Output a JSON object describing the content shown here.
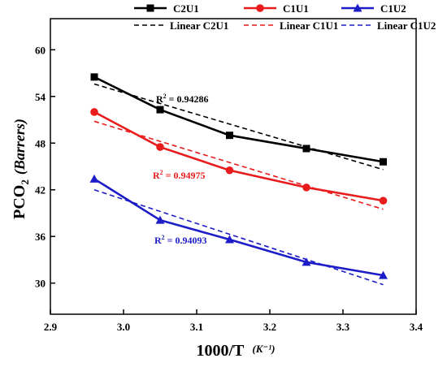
{
  "chart_data": {
    "type": "line",
    "title": "",
    "xlabel_main": "1000/T",
    "xlabel_unit": "(K⁻¹)",
    "ylabel_main": "PCO",
    "ylabel_sub": "2",
    "ylabel_unit": "(Barrers)",
    "xlim": [
      2.9,
      3.4
    ],
    "ylim": [
      26,
      64
    ],
    "xticks": [
      "2.9",
      "3.0",
      "3.1",
      "3.2",
      "3.3",
      "3.4"
    ],
    "yticks": [
      "30",
      "36",
      "42",
      "48",
      "54",
      "60"
    ],
    "grid": false,
    "legend_position": "top",
    "series": [
      {
        "name": "C2U1",
        "color": "#000000",
        "marker": "square",
        "x": [
          2.96,
          3.05,
          3.145,
          3.25,
          3.355
        ],
        "y": [
          56.5,
          52.3,
          49.0,
          47.3,
          45.6
        ],
        "fit_name": "Linear C2U1",
        "fit": [
          [
            2.96,
            55.6
          ],
          [
            3.355,
            44.6
          ]
        ],
        "r2_label": "R",
        "r2_sup": "2",
        "r2_value": " = 0.94286"
      },
      {
        "name": "C1U1",
        "color": "#e81c1c",
        "marker": "circle",
        "x": [
          2.96,
          3.05,
          3.145,
          3.25,
          3.355
        ],
        "y": [
          52.0,
          47.5,
          44.5,
          42.3,
          40.6
        ],
        "fit_name": "Linear C1U1",
        "fit": [
          [
            2.96,
            50.8
          ],
          [
            3.355,
            39.5
          ]
        ],
        "r2_label": "R",
        "r2_sup": "2",
        "r2_value": " = 0.94975"
      },
      {
        "name": "C1U2",
        "color": "#1c1cc8",
        "marker": "triangle",
        "x": [
          2.96,
          3.05,
          3.145,
          3.25,
          3.355
        ],
        "y": [
          43.4,
          38.1,
          35.6,
          32.7,
          31.0
        ],
        "fit_name": "Linear C1U2",
        "fit": [
          [
            2.96,
            42.0
          ],
          [
            3.355,
            29.8
          ]
        ],
        "r2_label": "R",
        "r2_sup": "2",
        "r2_value": " = 0.94093"
      }
    ]
  }
}
